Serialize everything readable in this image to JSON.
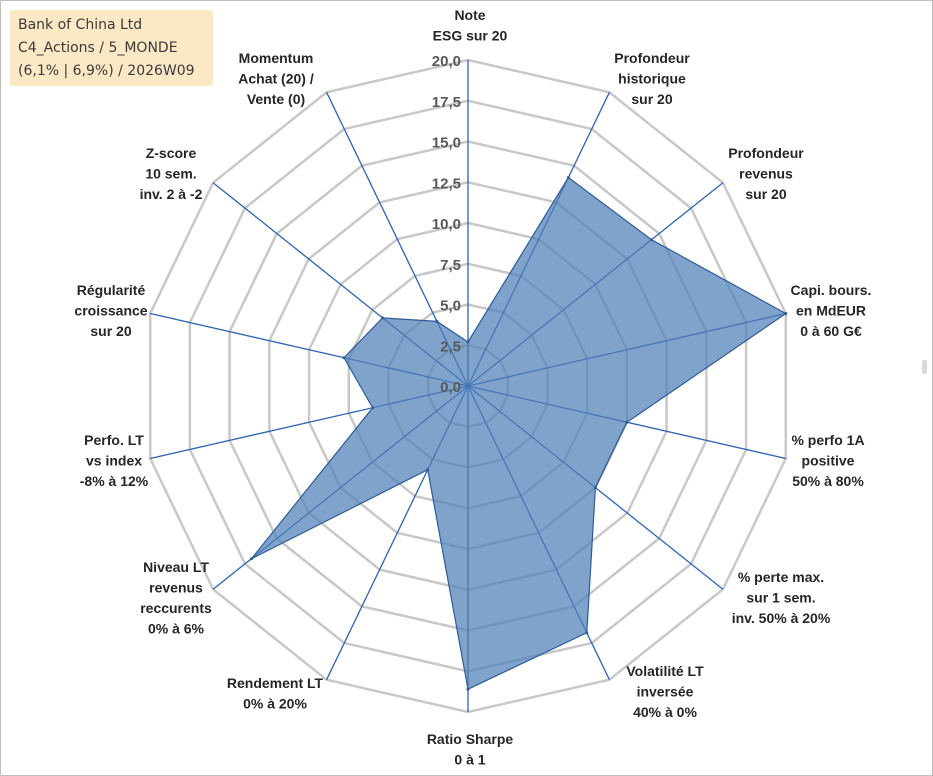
{
  "info": {
    "line1": "Bank of China Ltd",
    "line2": "C4_Actions / 5_MONDE",
    "line3": "(6,1% | 6,9%) / 2026W09"
  },
  "colors": {
    "fill": "#4f7fb8",
    "stroke": "#2e5d97",
    "grid": "#c8c8c8",
    "spoke": "#2e63b3",
    "infobox": "#fbe9c6"
  },
  "chart_data": {
    "type": "radar",
    "title": "",
    "rmin": 0,
    "rmax": 20,
    "ticks": [
      "0,0",
      "2,5",
      "5,0",
      "7,5",
      "10,0",
      "12,5",
      "15,0",
      "17,5",
      "20,0"
    ],
    "tick_values": [
      0,
      2.5,
      5,
      7.5,
      10,
      12.5,
      15,
      17.5,
      20
    ],
    "axes": [
      {
        "name": "ESG",
        "label": [
          "Note",
          "ESG sur 20"
        ],
        "value": 2.7
      },
      {
        "name": "Profondeur historique",
        "label": [
          "Profondeur",
          "historique",
          "sur 20"
        ],
        "value": 14.2
      },
      {
        "name": "Profondeur revenus",
        "label": [
          "Profondeur",
          "revenus",
          "sur 20"
        ],
        "value": 14.4
      },
      {
        "name": "Capi. bours.",
        "label": [
          "Capi. bours.",
          "en MdEUR",
          "0 à 60 G€"
        ],
        "value": 20.0
      },
      {
        "name": "% perfo 1A positive",
        "label": [
          "% perfo 1A",
          "positive",
          "50% à 80%"
        ],
        "value": 10.0
      },
      {
        "name": "% perte max.",
        "label": [
          "% perte max.",
          "sur 1 sem.",
          "inv. 50% à 20%"
        ],
        "value": 10.0
      },
      {
        "name": "Volatilité LT inversée",
        "label": [
          "Volatilité LT",
          "inversée",
          "40% à 0%"
        ],
        "value": 16.8
      },
      {
        "name": "Ratio Sharpe",
        "label": [
          "Ratio Sharpe",
          "0 à 1"
        ],
        "value": 18.6
      },
      {
        "name": "Rendement LT",
        "label": [
          "Rendement LT",
          "0% à 20%"
        ],
        "value": 5.7
      },
      {
        "name": "Niveau LT revenus reccurents",
        "label": [
          "Niveau LT",
          "revenus",
          "reccurents",
          "0% à 6%"
        ],
        "value": 17.0
      },
      {
        "name": "Perfo. LT vs index",
        "label": [
          "Perfo. LT",
          "vs index",
          "-8% à 12%"
        ],
        "value": 6.0
      },
      {
        "name": "Régularité croissance",
        "label": [
          "Régularité",
          "croissance",
          "sur 20"
        ],
        "value": 7.8
      },
      {
        "name": "Z-score",
        "label": [
          "Z-score",
          "10 sem.",
          "inv. 2 à -2"
        ],
        "value": 6.7
      },
      {
        "name": "Momentum",
        "label": [
          "Momentum",
          "Achat (20) /",
          "Vente (0)"
        ],
        "value": 4.4
      }
    ]
  }
}
